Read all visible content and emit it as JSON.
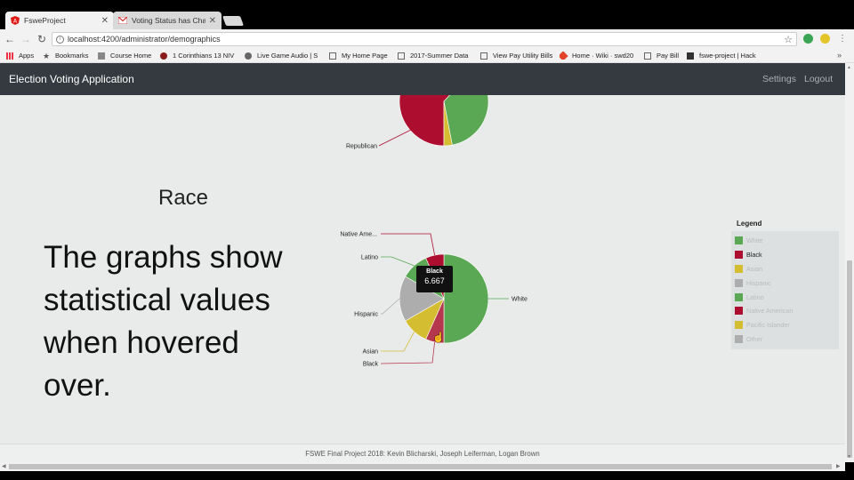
{
  "browser": {
    "tabs": [
      {
        "title": "FsweProject",
        "favicon": "angular-icon",
        "active": true
      },
      {
        "title": "Voting Status has Change",
        "favicon": "gmail-icon",
        "active": false
      }
    ],
    "url": "localhost:4200/administrator/demographics",
    "bookmarks": [
      "Apps",
      "Bookmarks",
      "Course Home",
      "1 Corinthians 13 NIV",
      "Live Game Audio | S",
      "My Home Page",
      "2017-Summer Data",
      "View Pay Utility Bills",
      "Home · Wiki · swd20",
      "Pay Bill",
      "fswe-project | Hack"
    ]
  },
  "app": {
    "brand": "Election Voting Application",
    "nav": {
      "settings": "Settings",
      "logout": "Logout"
    }
  },
  "section": {
    "title": "Race",
    "description": "The graphs show statistical values when hovered over."
  },
  "tooltip": {
    "label": "Black",
    "value": "6.667"
  },
  "footer": "FSWE Final Project 2018: Kevin Blicharski, Joseph Leiferman, Logan Brown",
  "colors": {
    "green": "#5aa854",
    "red": "#ad0d2e",
    "yellow": "#d4bd31",
    "gray": "#adadad"
  },
  "chart_data": [
    {
      "type": "pie",
      "title": "",
      "slices": [
        {
          "label": "Republican",
          "value": 62,
          "color": "#ad0d2e"
        },
        {
          "label": "",
          "value": 35,
          "color": "#5aa854"
        },
        {
          "label": "",
          "value": 3,
          "color": "#d4bd31"
        }
      ]
    },
    {
      "type": "pie",
      "title": "",
      "legend": {
        "title": "Legend",
        "items": [
          {
            "label": "White",
            "color": "#5aa854",
            "enabled": false
          },
          {
            "label": "Black",
            "color": "#ad0d2e",
            "enabled": true
          },
          {
            "label": "Asian",
            "color": "#d4bd31",
            "enabled": false
          },
          {
            "label": "Hispanic",
            "color": "#adadad",
            "enabled": false
          },
          {
            "label": "Latino",
            "color": "#5aa854",
            "enabled": false
          },
          {
            "label": "Native American",
            "color": "#ad0d2e",
            "enabled": false
          },
          {
            "label": "Pacific Islander",
            "color": "#d4bd31",
            "enabled": false
          },
          {
            "label": "Other",
            "color": "#adadad",
            "enabled": false
          }
        ]
      },
      "slices": [
        {
          "label": "White",
          "value": 50,
          "color": "#5aa854"
        },
        {
          "label": "Black",
          "value": 6.667,
          "color": "#b5374d"
        },
        {
          "label": "Asian",
          "value": 10,
          "color": "#d4bd31"
        },
        {
          "label": "Hispanic",
          "value": 16.667,
          "color": "#adadad"
        },
        {
          "label": "Latino",
          "value": 10,
          "color": "#5aa854"
        },
        {
          "label": "Native Ame...",
          "value": 6.667,
          "color": "#ad0d2e"
        }
      ]
    }
  ]
}
